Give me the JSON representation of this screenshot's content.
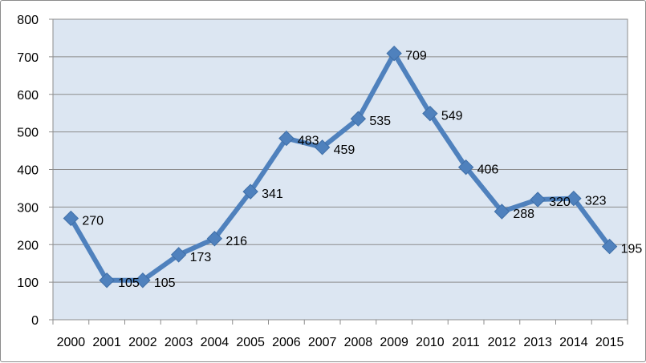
{
  "chart_data": {
    "type": "line",
    "title": "",
    "xlabel": "",
    "ylabel": "",
    "ylim": [
      0,
      800
    ],
    "yticks": [
      0,
      100,
      200,
      300,
      400,
      500,
      600,
      700,
      800
    ],
    "grid": true,
    "legend": "none",
    "categories": [
      "2000",
      "2001",
      "2002",
      "2003",
      "2004",
      "2005",
      "2006",
      "2007",
      "2008",
      "2009",
      "2010",
      "2011",
      "2012",
      "2013",
      "2014",
      "2015"
    ],
    "series": [
      {
        "values": [
          270,
          105,
          105,
          173,
          216,
          341,
          483,
          459,
          535,
          709,
          549,
          406,
          288,
          320,
          323,
          195
        ],
        "color": "#4f81bd",
        "marker": "diamond",
        "data_labels": [
          "270",
          "105",
          "105",
          "173",
          "216",
          "341",
          "483",
          "459",
          "535",
          "709",
          "549",
          "406",
          "288",
          "320",
          "323",
          "195"
        ]
      }
    ],
    "plot_background": "#dce6f2",
    "gridline_color": "#8c8c8c"
  }
}
